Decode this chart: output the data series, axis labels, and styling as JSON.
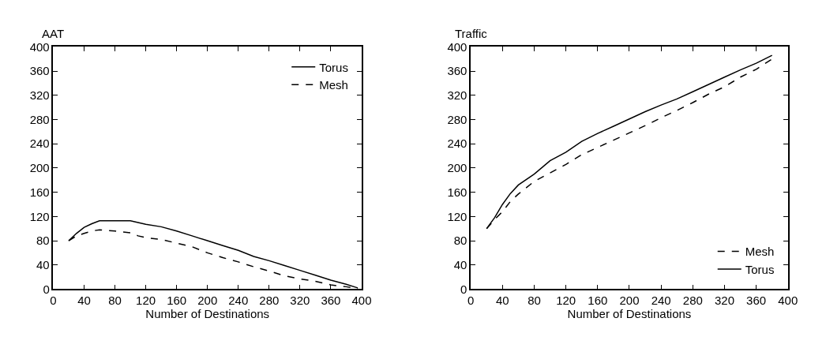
{
  "chart_data": [
    {
      "type": "line",
      "ylabel": "AAT",
      "xlabel": "Number of Destinations",
      "xlim": [
        0,
        400
      ],
      "ylim": [
        0,
        400
      ],
      "xticks": [
        0,
        40,
        80,
        120,
        160,
        200,
        240,
        280,
        320,
        360,
        400
      ],
      "yticks": [
        0,
        40,
        80,
        120,
        160,
        200,
        240,
        280,
        320,
        360,
        400
      ],
      "legend": "top right",
      "marker": "none",
      "x": [
        20,
        30,
        40,
        50,
        60,
        80,
        100,
        110,
        120,
        140,
        160,
        180,
        200,
        220,
        240,
        260,
        280,
        300,
        320,
        340,
        360,
        380,
        395
      ],
      "series": [
        {
          "name": "Torus",
          "color": "#000000",
          "line_style": "solid",
          "values": [
            80,
            92,
            102,
            108,
            113,
            113,
            113,
            110,
            107,
            103,
            96,
            88,
            80,
            72,
            64,
            54,
            47,
            39,
            31,
            23,
            15,
            8,
            2
          ]
        },
        {
          "name": "Mesh",
          "color": "#000000",
          "line_style": "dashed",
          "values": [
            80,
            88,
            92,
            96,
            98,
            96,
            93,
            88,
            85,
            82,
            76,
            70,
            60,
            52,
            45,
            37,
            30,
            22,
            17,
            13,
            7,
            4,
            1
          ]
        }
      ]
    },
    {
      "type": "line",
      "ylabel": "Traffic",
      "xlabel": "Number of Destinations",
      "xlim": [
        0,
        400
      ],
      "ylim": [
        0,
        400
      ],
      "xticks": [
        0,
        40,
        80,
        120,
        160,
        200,
        240,
        280,
        320,
        360,
        400
      ],
      "yticks": [
        0,
        40,
        80,
        120,
        160,
        200,
        240,
        280,
        320,
        360,
        400
      ],
      "legend": "bottom right",
      "marker": "none",
      "x": [
        20,
        30,
        40,
        50,
        60,
        80,
        100,
        120,
        140,
        160,
        180,
        200,
        220,
        240,
        260,
        280,
        300,
        320,
        340,
        360,
        380
      ],
      "series": [
        {
          "name": "Mesh",
          "color": "#000000",
          "line_style": "dashed",
          "values": [
            100,
            115,
            128,
            145,
            157,
            178,
            192,
            206,
            222,
            234,
            246,
            258,
            270,
            283,
            295,
            308,
            322,
            334,
            350,
            363,
            380
          ]
        },
        {
          "name": "Torus",
          "color": "#000000",
          "line_style": "solid",
          "values": [
            100,
            118,
            140,
            158,
            172,
            190,
            212,
            226,
            244,
            257,
            269,
            281,
            293,
            304,
            314,
            326,
            338,
            350,
            362,
            373,
            386
          ]
        }
      ]
    }
  ]
}
